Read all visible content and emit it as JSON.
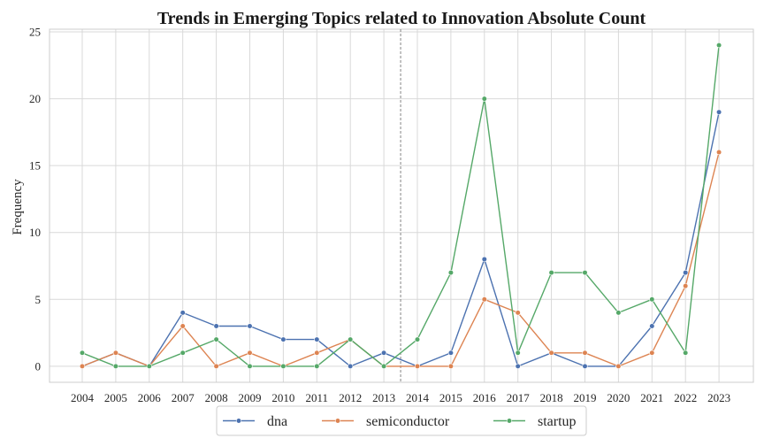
{
  "chart_data": {
    "type": "line",
    "title": "Trends in Emerging Topics related to Innovation  Absolute Count",
    "xlabel": "",
    "ylabel": "Frequency",
    "categories": [
      "2004",
      "2005",
      "2006",
      "2007",
      "2008",
      "2009",
      "2010",
      "2011",
      "2012",
      "2013",
      "2014",
      "2015",
      "2016",
      "2017",
      "2018",
      "2019",
      "2020",
      "2021",
      "2022",
      "2023"
    ],
    "ylim": [
      -1.2,
      25.2
    ],
    "yticks": [
      "0",
      "5",
      "10",
      "15",
      "20",
      "25"
    ],
    "grid": true,
    "divider_after": "2013",
    "legend_position": "bottom-center",
    "series": [
      {
        "name": "dna",
        "color": "#4c72b0",
        "values": [
          0,
          1,
          0,
          4,
          3,
          3,
          2,
          2,
          0,
          1,
          0,
          1,
          8,
          0,
          1,
          0,
          0,
          3,
          7,
          19
        ]
      },
      {
        "name": "semiconductor",
        "color": "#dd8452",
        "values": [
          0,
          1,
          0,
          3,
          0,
          1,
          0,
          1,
          2,
          0,
          0,
          0,
          5,
          4,
          1,
          1,
          0,
          1,
          6,
          16
        ]
      },
      {
        "name": "startup",
        "color": "#55a868",
        "values": [
          1,
          0,
          0,
          1,
          2,
          0,
          0,
          0,
          2,
          0,
          2,
          7,
          20,
          1,
          7,
          7,
          4,
          5,
          1,
          24
        ]
      }
    ]
  }
}
